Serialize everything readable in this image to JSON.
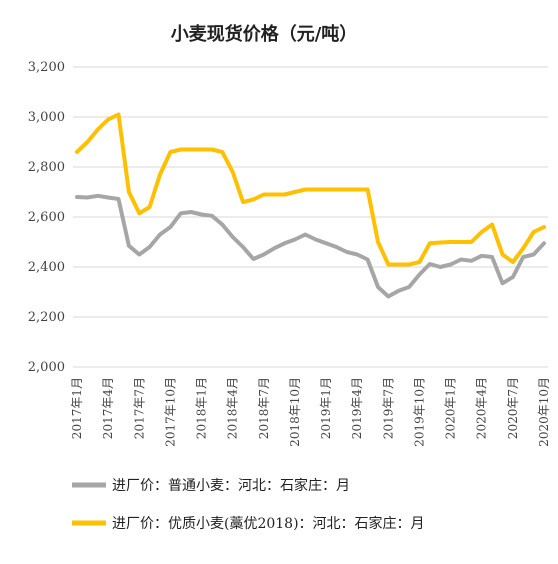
{
  "chart_data": {
    "type": "line",
    "title": "小麦现货价格（元/吨）",
    "ylim": [
      2000,
      3200
    ],
    "yticks": [
      2000,
      2200,
      2400,
      2600,
      2800,
      3000,
      3200
    ],
    "ytick_labels": [
      "2,000",
      "2,200",
      "2,400",
      "2,600",
      "2,800",
      "3,000",
      "3,200"
    ],
    "x_tick_labels": [
      "2017年1月",
      "2017年4月",
      "2017年7月",
      "2017年10月",
      "2018年1月",
      "2018年4月",
      "2018年7月",
      "2018年10月",
      "2019年1月",
      "2019年4月",
      "2019年7月",
      "2019年10月",
      "2020年1月",
      "2020年4月",
      "2020年7月",
      "2020年10月"
    ],
    "grid": "horizontal",
    "legend_position": "bottom",
    "series": [
      {
        "name": "进厂价：普通小麦：河北：石家庄：月",
        "color": "#a6a6a6",
        "values": [
          2680,
          2678,
          2685,
          2678,
          2672,
          2485,
          2450,
          2480,
          2530,
          2560,
          2615,
          2620,
          2610,
          2605,
          2570,
          2520,
          2480,
          2432,
          2450,
          2475,
          2495,
          2510,
          2530,
          2510,
          2495,
          2480,
          2460,
          2450,
          2430,
          2320,
          2282,
          2305,
          2320,
          2370,
          2412,
          2400,
          2410,
          2430,
          2425,
          2445,
          2440,
          2335,
          2360,
          2440,
          2450,
          2495
        ]
      },
      {
        "name": "进厂价：优质小麦(藁优2018)：河北：石家庄：月",
        "color": "#ffc000",
        "values": [
          2860,
          2900,
          2950,
          2990,
          3010,
          2700,
          2615,
          2640,
          2770,
          2860,
          2870,
          2870,
          2870,
          2870,
          2860,
          2780,
          2660,
          2670,
          2690,
          2690,
          2690,
          2700,
          2710,
          2710,
          2710,
          2710,
          2710,
          2710,
          2710,
          2500,
          2410,
          2410,
          2410,
          2420,
          2495,
          2498,
          2500,
          2500,
          2500,
          2540,
          2570,
          2450,
          2420,
          2475,
          2540,
          2560
        ]
      }
    ]
  }
}
